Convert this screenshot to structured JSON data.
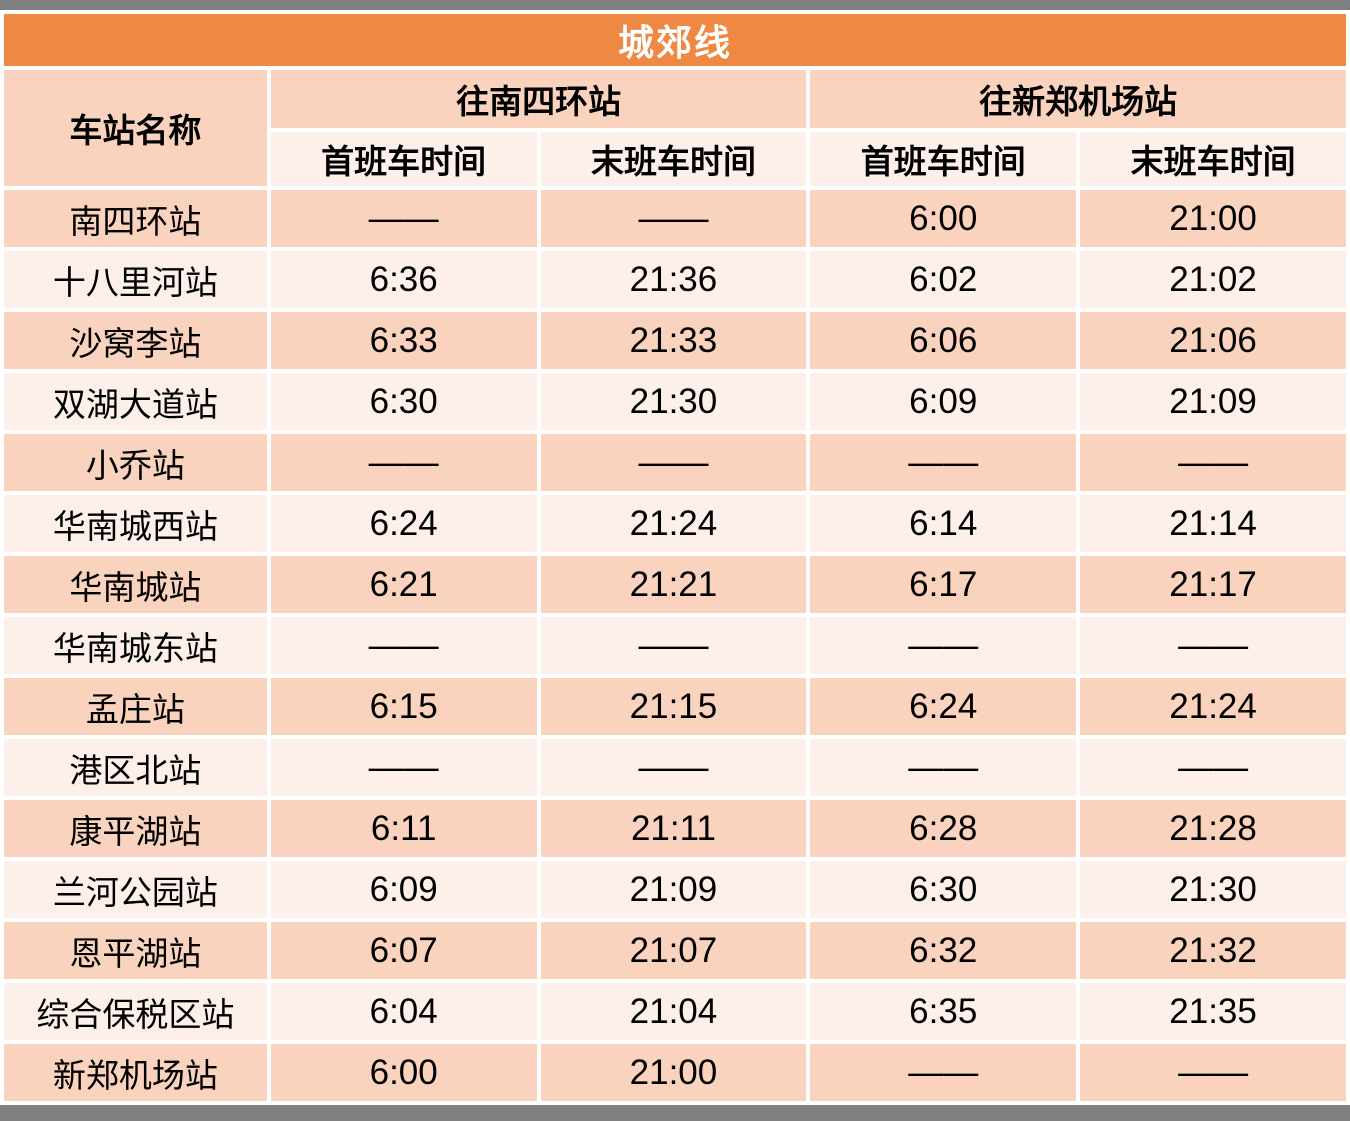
{
  "colors": {
    "title_bg": "#EF8843",
    "title_text": "#FFFFFF",
    "header_row_bg": "#F9D3BE",
    "alt_row_bg": "#FDF0EB",
    "frame_bar": "#7F7F7F",
    "body_text": "#000000"
  },
  "chart_data": {
    "type": "table",
    "title": "城郊线",
    "headers": {
      "station": "车站名称",
      "direction1": "往南四环站",
      "direction2": "往新郑机场站",
      "first_train": "首班车时间",
      "last_train": "末班车时间"
    },
    "no_service_mark": "——",
    "rows": [
      {
        "station": "南四环站",
        "d1_first": "——",
        "d1_last": "——",
        "d2_first": "6:00",
        "d2_last": "21:00"
      },
      {
        "station": "十八里河站",
        "d1_first": "6:36",
        "d1_last": "21:36",
        "d2_first": "6:02",
        "d2_last": "21:02"
      },
      {
        "station": "沙窝李站",
        "d1_first": "6:33",
        "d1_last": "21:33",
        "d2_first": "6:06",
        "d2_last": "21:06"
      },
      {
        "station": "双湖大道站",
        "d1_first": "6:30",
        "d1_last": "21:30",
        "d2_first": "6:09",
        "d2_last": "21:09"
      },
      {
        "station": "小乔站",
        "d1_first": "——",
        "d1_last": "——",
        "d2_first": "——",
        "d2_last": "——"
      },
      {
        "station": "华南城西站",
        "d1_first": "6:24",
        "d1_last": "21:24",
        "d2_first": "6:14",
        "d2_last": "21:14"
      },
      {
        "station": "华南城站",
        "d1_first": "6:21",
        "d1_last": "21:21",
        "d2_first": "6:17",
        "d2_last": "21:17"
      },
      {
        "station": "华南城东站",
        "d1_first": "——",
        "d1_last": "——",
        "d2_first": "——",
        "d2_last": "——"
      },
      {
        "station": "孟庄站",
        "d1_first": "6:15",
        "d1_last": "21:15",
        "d2_first": "6:24",
        "d2_last": "21:24"
      },
      {
        "station": "港区北站",
        "d1_first": "——",
        "d1_last": "——",
        "d2_first": "——",
        "d2_last": "——"
      },
      {
        "station": "康平湖站",
        "d1_first": "6:11",
        "d1_last": "21:11",
        "d2_first": "6:28",
        "d2_last": "21:28"
      },
      {
        "station": "兰河公园站",
        "d1_first": "6:09",
        "d1_last": "21:09",
        "d2_first": "6:30",
        "d2_last": "21:30"
      },
      {
        "station": "恩平湖站",
        "d1_first": "6:07",
        "d1_last": "21:07",
        "d2_first": "6:32",
        "d2_last": "21:32"
      },
      {
        "station": "综合保税区站",
        "d1_first": "6:04",
        "d1_last": "21:04",
        "d2_first": "6:35",
        "d2_last": "21:35"
      },
      {
        "station": "新郑机场站",
        "d1_first": "6:00",
        "d1_last": "21:00",
        "d2_first": "——",
        "d2_last": "——"
      }
    ]
  }
}
